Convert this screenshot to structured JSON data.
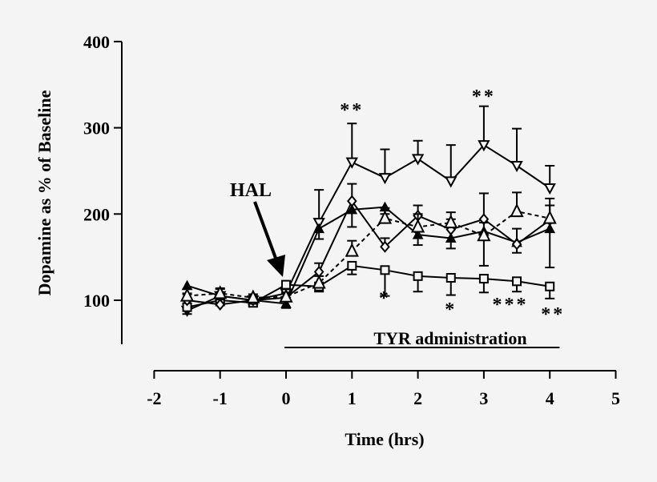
{
  "chart_data": {
    "type": "line",
    "xlabel": "Time (hrs)",
    "ylabel": "Dopamine as % of Baseline",
    "xlim": [
      -2,
      5
    ],
    "ylim": [
      0,
      400
    ],
    "x_ticks": [
      "-2",
      "-1",
      "0",
      "1",
      "2",
      "3",
      "4",
      "5"
    ],
    "y_ticks": [
      "100",
      "200",
      "300",
      "400"
    ],
    "grid": false,
    "x": [
      -1.5,
      -1,
      -0.5,
      0,
      0.5,
      1,
      1.5,
      2,
      2.5,
      3,
      3.5,
      4
    ],
    "series": [
      {
        "marker": "inverted-triangle-open",
        "line": "solid",
        "values": [
          88,
          105,
          100,
          108,
          190,
          260,
          242,
          264,
          238,
          280,
          256,
          230
        ],
        "errors": [
          8,
          8,
          5,
          6,
          38,
          45,
          33,
          21,
          42,
          45,
          43,
          26
        ]
      },
      {
        "marker": "square-open",
        "line": "solid",
        "values": [
          92,
          100,
          97,
          118,
          116,
          140,
          135,
          128,
          126,
          125,
          122,
          116
        ],
        "errors": [
          8,
          6,
          4,
          5,
          6,
          10,
          30,
          18,
          20,
          16,
          12,
          14
        ]
      },
      {
        "marker": "triangle-filled",
        "line": "solid",
        "values": [
          117,
          105,
          100,
          96,
          183,
          205,
          208,
          176,
          172,
          180,
          167,
          183
        ],
        "errors": [
          10,
          8,
          4,
          5,
          12,
          20,
          8,
          12,
          12,
          40,
          12,
          45
        ]
      },
      {
        "marker": "diamond-open",
        "line": "solid",
        "values": [
          100,
          95,
          100,
          103,
          133,
          215,
          162,
          198,
          182,
          194,
          165,
          193
        ],
        "errors": [
          8,
          6,
          4,
          5,
          10,
          20,
          10,
          12,
          12,
          30,
          18,
          25
        ]
      },
      {
        "marker": "triangle-open",
        "line": "dashed",
        "values": [
          105,
          108,
          103,
          104,
          120,
          157,
          195,
          185,
          190,
          175,
          203,
          195
        ],
        "errors": [
          8,
          6,
          4,
          5,
          8,
          12,
          12,
          15,
          12,
          15,
          22,
          15
        ]
      }
    ],
    "annotations": {
      "hal": {
        "text": "HAL",
        "x": 0
      },
      "tyr": {
        "text": "TYR administration",
        "from": 0,
        "to": 4.1
      },
      "significance": [
        {
          "x": 1,
          "text": "**"
        },
        {
          "x": 3,
          "text": "**"
        },
        {
          "x": 1.5,
          "text": "*"
        },
        {
          "x": 2.5,
          "text": "*"
        },
        {
          "x": 3.5,
          "text": "***"
        },
        {
          "x": 4,
          "text": "**"
        }
      ]
    }
  }
}
